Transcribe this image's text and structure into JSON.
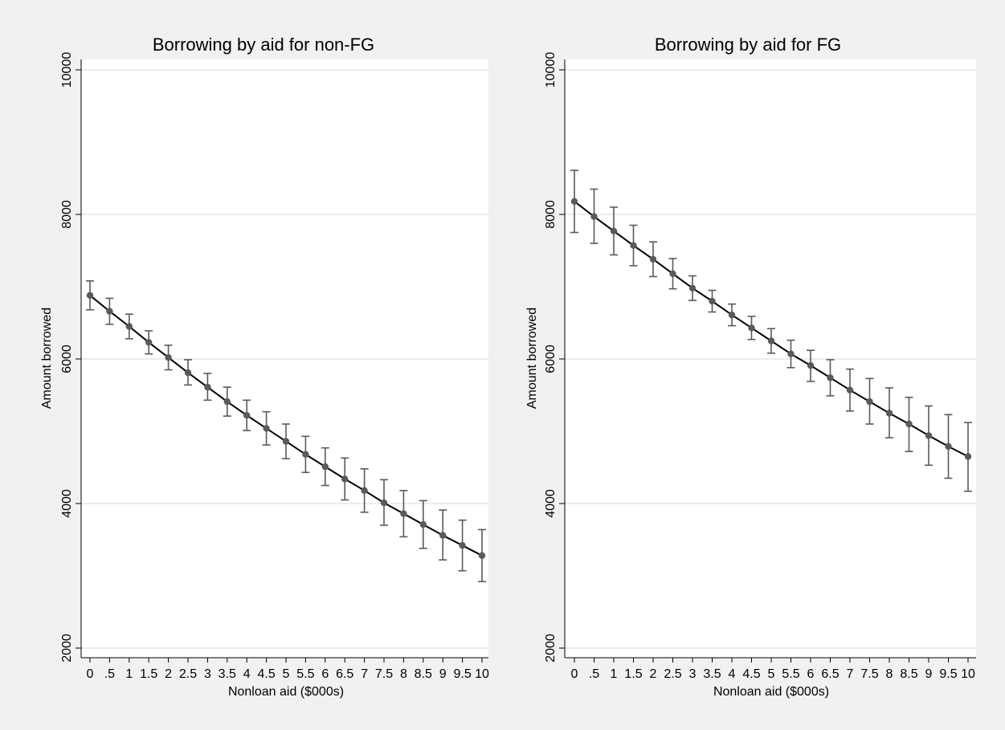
{
  "colors": {
    "background": "#f1f1f1",
    "plot_area": "#ffffff",
    "gridline": "#d9d9d9",
    "line": "#000000",
    "marker": "#5a5a5a",
    "error_bar": "#5a5a5a"
  },
  "chart_data": [
    {
      "type": "line",
      "title": "Borrowing by aid for non-FG",
      "xlabel": "Nonloan aid ($000s)",
      "ylabel": "Amount borrowed",
      "categories": [
        "0",
        ".5",
        "1",
        "1.5",
        "2",
        "2.5",
        "3",
        "3.5",
        "4",
        "4.5",
        "5",
        "5.5",
        "6",
        "6.5",
        "7",
        "7.5",
        "8",
        "8.5",
        "9",
        "9.5",
        "10"
      ],
      "x": [
        0,
        0.5,
        1,
        1.5,
        2,
        2.5,
        3,
        3.5,
        4,
        4.5,
        5,
        5.5,
        6,
        6.5,
        7,
        7.5,
        8,
        8.5,
        9,
        9.5,
        10
      ],
      "ylim": [
        2000,
        10000
      ],
      "yticks": [
        "2000",
        "4000",
        "6000",
        "8000",
        "10000"
      ],
      "grid": true,
      "series": [
        {
          "values": [
            6880,
            6660,
            6450,
            6230,
            6020,
            5810,
            5610,
            5410,
            5220,
            5040,
            4860,
            4680,
            4510,
            4340,
            4180,
            4010,
            3860,
            3710,
            3560,
            3420,
            3280
          ],
          "lower": [
            6680,
            6480,
            6280,
            6070,
            5850,
            5640,
            5430,
            5210,
            5010,
            4810,
            4620,
            4430,
            4250,
            4050,
            3880,
            3700,
            3540,
            3380,
            3220,
            3070,
            2920
          ],
          "upper": [
            7080,
            6840,
            6620,
            6390,
            6190,
            5990,
            5800,
            5610,
            5430,
            5270,
            5100,
            4930,
            4770,
            4630,
            4480,
            4330,
            4180,
            4040,
            3910,
            3770,
            3640
          ]
        }
      ]
    },
    {
      "type": "line",
      "title": "Borrowing by aid for FG",
      "xlabel": "Nonloan aid ($000s)",
      "ylabel": "Amount borrowed",
      "categories": [
        "0",
        ".5",
        "1",
        "1.5",
        "2",
        "2.5",
        "3",
        "3.5",
        "4",
        "4.5",
        "5",
        "5.5",
        "6",
        "6.5",
        "7",
        "7.5",
        "8",
        "8.5",
        "9",
        "9.5",
        "10"
      ],
      "x": [
        0,
        0.5,
        1,
        1.5,
        2,
        2.5,
        3,
        3.5,
        4,
        4.5,
        5,
        5.5,
        6,
        6.5,
        7,
        7.5,
        8,
        8.5,
        9,
        9.5,
        10
      ],
      "ylim": [
        2000,
        10000
      ],
      "yticks": [
        "2000",
        "4000",
        "6000",
        "8000",
        "10000"
      ],
      "grid": true,
      "series": [
        {
          "values": [
            8180,
            7970,
            7770,
            7570,
            7380,
            7180,
            6980,
            6800,
            6610,
            6430,
            6250,
            6070,
            5910,
            5740,
            5570,
            5410,
            5250,
            5100,
            4940,
            4790,
            4650
          ],
          "lower": [
            7750,
            7600,
            7440,
            7290,
            7140,
            6970,
            6810,
            6650,
            6460,
            6270,
            6080,
            5880,
            5690,
            5490,
            5280,
            5100,
            4910,
            4720,
            4530,
            4350,
            4170
          ],
          "upper": [
            8610,
            8350,
            8100,
            7850,
            7620,
            7390,
            7150,
            6950,
            6760,
            6590,
            6420,
            6260,
            6120,
            5990,
            5860,
            5730,
            5600,
            5470,
            5350,
            5230,
            5120
          ]
        }
      ]
    }
  ]
}
